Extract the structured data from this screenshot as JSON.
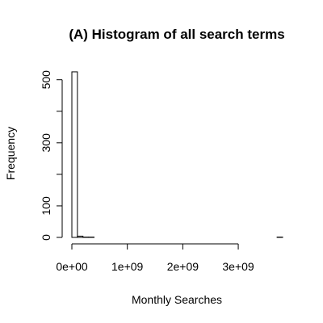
{
  "chart_data": {
    "type": "bar",
    "title": "(A) Histogram of all search terms",
    "xlabel": "Monthly Searches",
    "ylabel": "Frequency",
    "x_ticks": [
      {
        "value": 0,
        "label": "0e+00"
      },
      {
        "value": 1000000000,
        "label": "1e+09"
      },
      {
        "value": 2000000000,
        "label": "2e+09"
      },
      {
        "value": 3000000000,
        "label": "3e+09"
      }
    ],
    "y_ticks": [
      {
        "value": 0,
        "label": "0"
      },
      {
        "value": 100,
        "label": "100"
      },
      {
        "value": 200,
        "label": ""
      },
      {
        "value": 300,
        "label": "300"
      },
      {
        "value": 400,
        "label": ""
      },
      {
        "value": 500,
        "label": "500"
      }
    ],
    "xlim": [
      0,
      3800000000
    ],
    "ylim": [
      0,
      530
    ],
    "bin_width": 100000000,
    "bins": [
      {
        "x0": 0,
        "x1": 100000000,
        "count": 525
      },
      {
        "x0": 100000000,
        "x1": 200000000,
        "count": 4
      },
      {
        "x0": 200000000,
        "x1": 300000000,
        "count": 1
      },
      {
        "x0": 300000000,
        "x1": 400000000,
        "count": 1
      },
      {
        "x0": 400000000,
        "x1": 500000000,
        "count": 0
      },
      {
        "x0": 500000000,
        "x1": 600000000,
        "count": 0
      },
      {
        "x0": 600000000,
        "x1": 700000000,
        "count": 0
      },
      {
        "x0": 700000000,
        "x1": 800000000,
        "count": 0
      },
      {
        "x0": 800000000,
        "x1": 900000000,
        "count": 0
      },
      {
        "x0": 900000000,
        "x1": 1000000000,
        "count": 0
      },
      {
        "x0": 1000000000,
        "x1": 1100000000,
        "count": 0
      },
      {
        "x0": 1100000000,
        "x1": 1200000000,
        "count": 0
      },
      {
        "x0": 1200000000,
        "x1": 1300000000,
        "count": 0
      },
      {
        "x0": 1300000000,
        "x1": 1400000000,
        "count": 0
      },
      {
        "x0": 1400000000,
        "x1": 1500000000,
        "count": 0
      },
      {
        "x0": 1500000000,
        "x1": 1600000000,
        "count": 0
      },
      {
        "x0": 1600000000,
        "x1": 1700000000,
        "count": 0
      },
      {
        "x0": 1700000000,
        "x1": 1800000000,
        "count": 0
      },
      {
        "x0": 1800000000,
        "x1": 1900000000,
        "count": 0
      },
      {
        "x0": 1900000000,
        "x1": 2000000000,
        "count": 0
      },
      {
        "x0": 2000000000,
        "x1": 2100000000,
        "count": 0
      },
      {
        "x0": 2100000000,
        "x1": 2200000000,
        "count": 0
      },
      {
        "x0": 2200000000,
        "x1": 2300000000,
        "count": 0
      },
      {
        "x0": 2300000000,
        "x1": 2400000000,
        "count": 0
      },
      {
        "x0": 2400000000,
        "x1": 2500000000,
        "count": 0
      },
      {
        "x0": 2500000000,
        "x1": 2600000000,
        "count": 0
      },
      {
        "x0": 2600000000,
        "x1": 2700000000,
        "count": 0
      },
      {
        "x0": 2700000000,
        "x1": 2800000000,
        "count": 0
      },
      {
        "x0": 2800000000,
        "x1": 2900000000,
        "count": 0
      },
      {
        "x0": 2900000000,
        "x1": 3000000000,
        "count": 0
      },
      {
        "x0": 3000000000,
        "x1": 3100000000,
        "count": 0
      },
      {
        "x0": 3100000000,
        "x1": 3200000000,
        "count": 0
      },
      {
        "x0": 3200000000,
        "x1": 3300000000,
        "count": 0
      },
      {
        "x0": 3300000000,
        "x1": 3400000000,
        "count": 0
      },
      {
        "x0": 3400000000,
        "x1": 3500000000,
        "count": 0
      },
      {
        "x0": 3500000000,
        "x1": 3600000000,
        "count": 0
      },
      {
        "x0": 3600000000,
        "x1": 3700000000,
        "count": 0
      },
      {
        "x0": 3700000000,
        "x1": 3800000000,
        "count": 1
      }
    ],
    "grid": false,
    "legend": "none"
  }
}
